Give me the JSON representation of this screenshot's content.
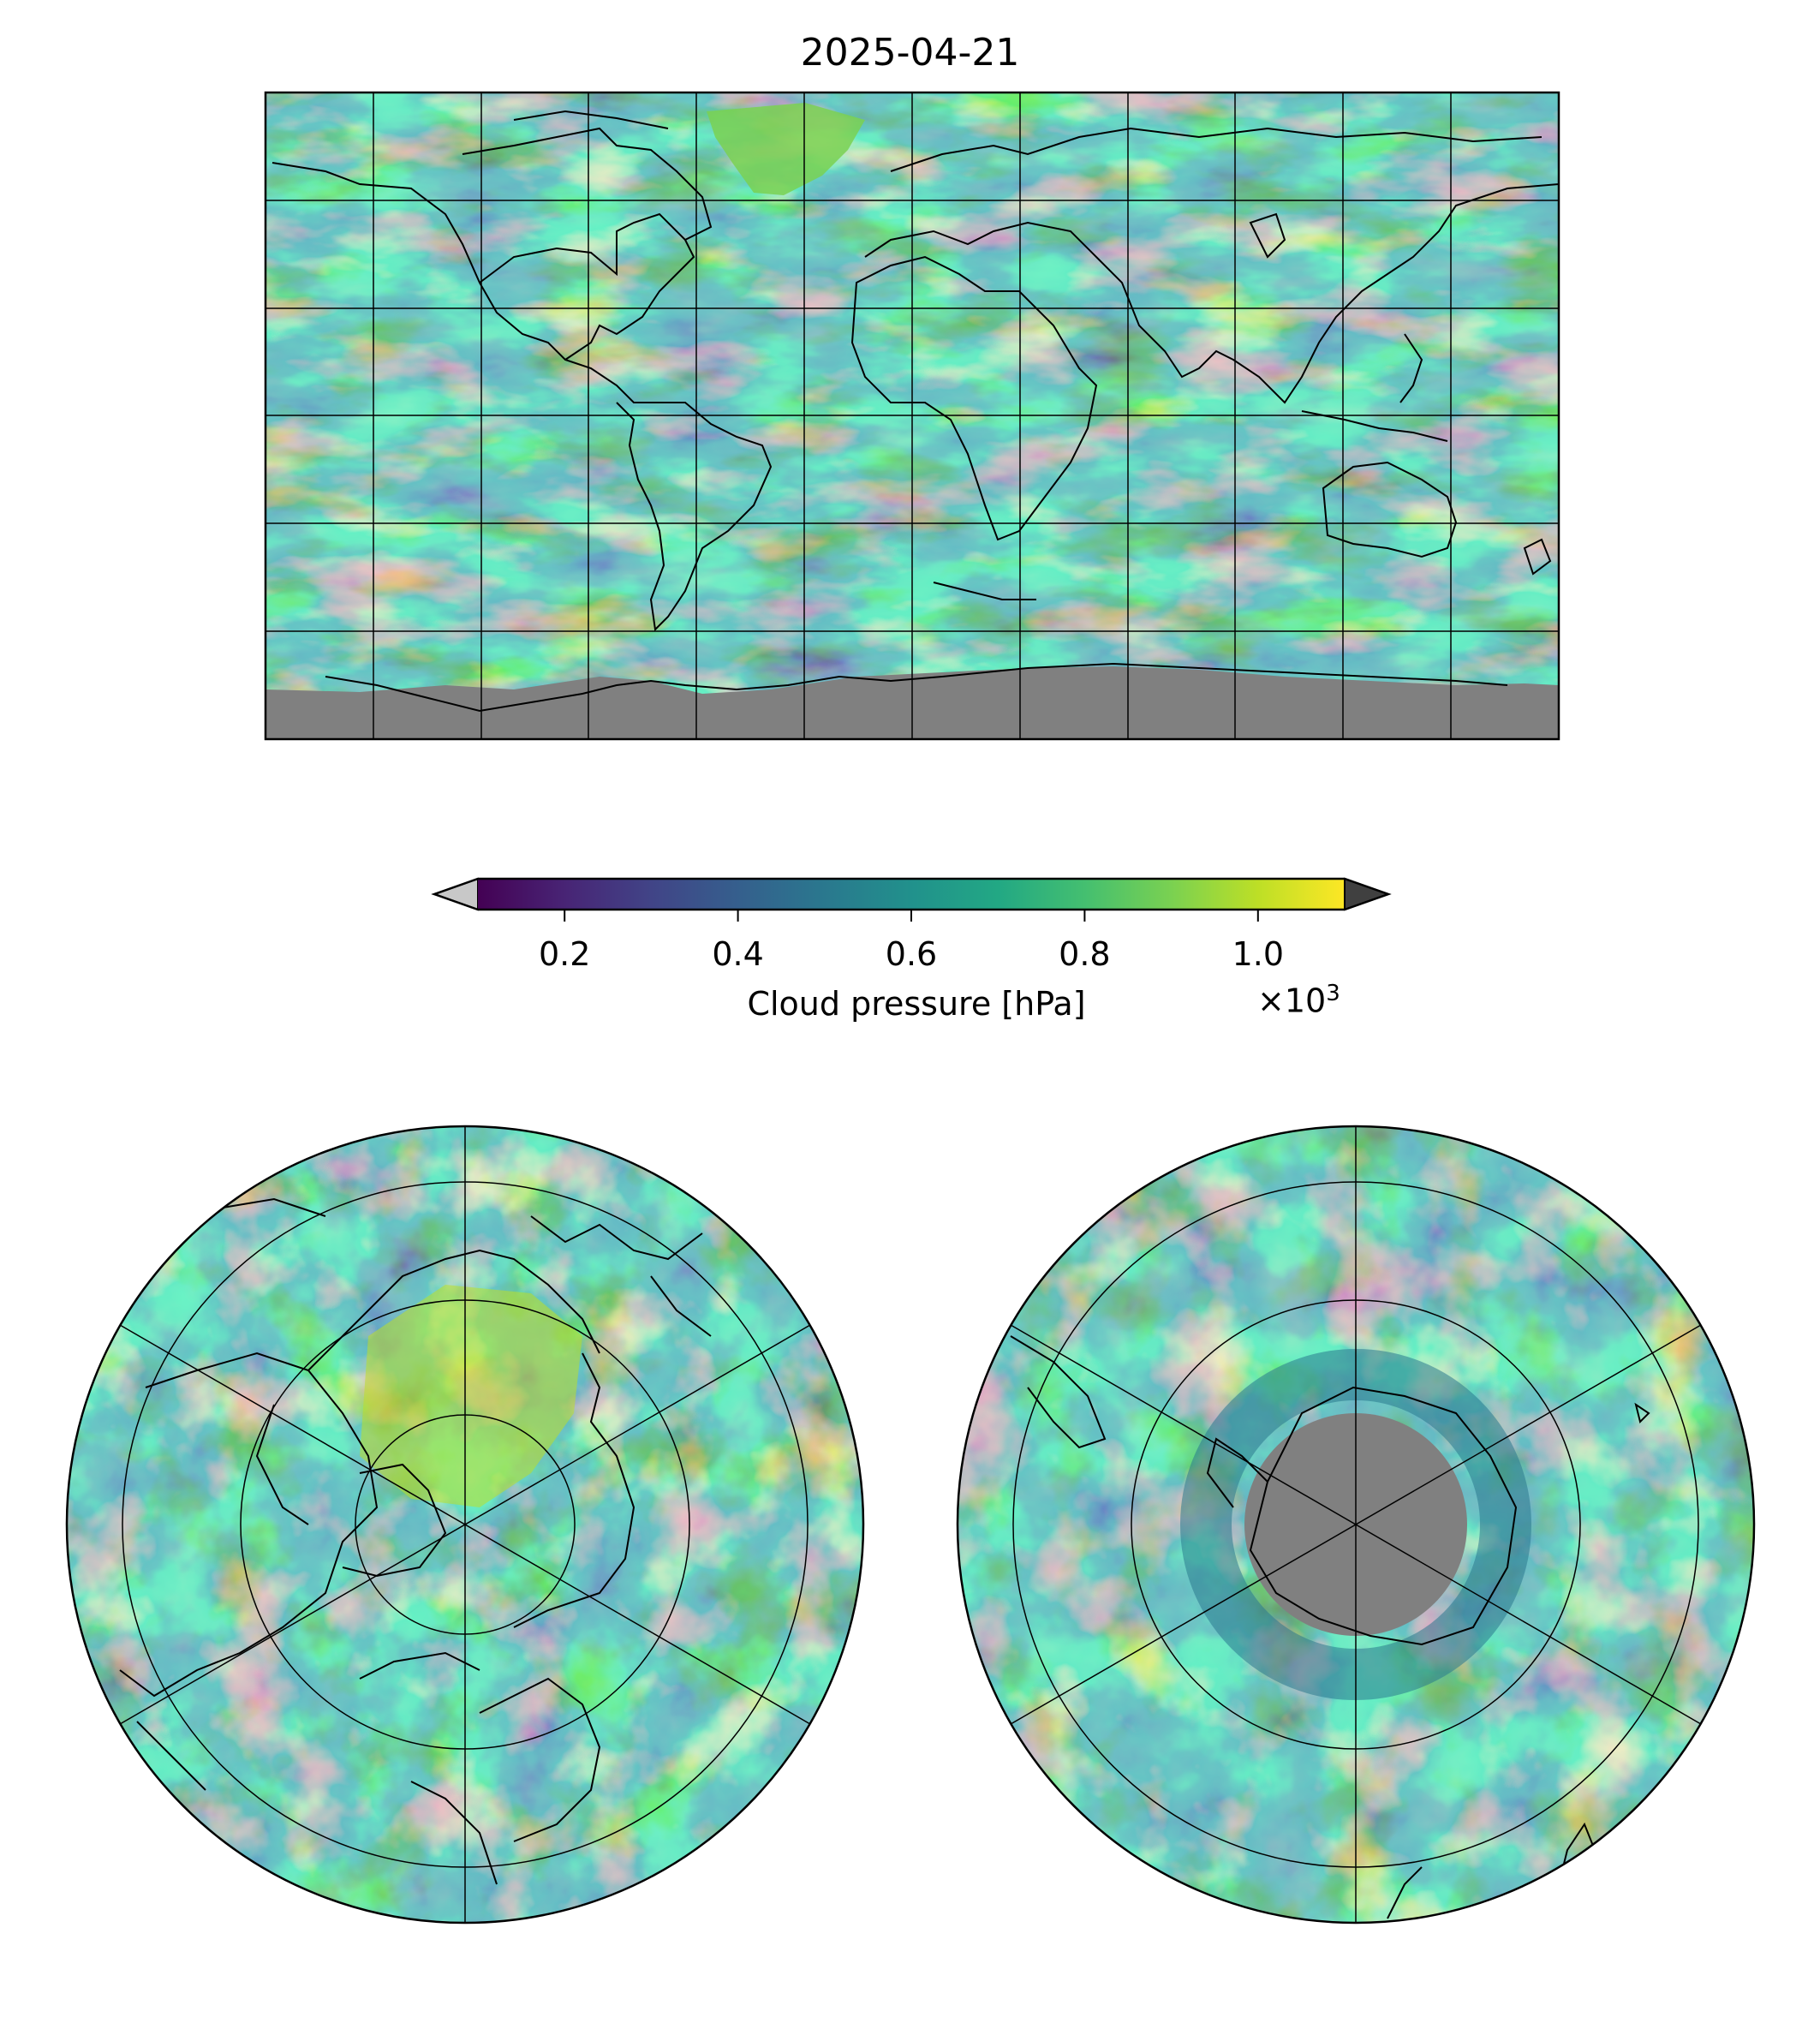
{
  "title": "2025-04-21",
  "colorbar": {
    "label": "Cloud pressure [hPa]",
    "multiplier": "×10",
    "multiplier_exp": "3",
    "ticks": [
      {
        "value": 0.2,
        "label": "0.2"
      },
      {
        "value": 0.4,
        "label": "0.4"
      },
      {
        "value": 0.6,
        "label": "0.6"
      },
      {
        "value": 0.8,
        "label": "0.8"
      },
      {
        "value": 1.0,
        "label": "1.0"
      }
    ],
    "range": [
      0.1,
      1.1
    ],
    "colormap": "viridis",
    "under_color": "#c8c8c8",
    "over_color": "#404040"
  },
  "colors": {
    "no_data": "#808080",
    "viridis_low": "#440154",
    "viridis_mid": "#21918c",
    "viridis_high": "#fde725"
  },
  "panels": [
    {
      "name": "global-map",
      "projection": "plate-carree"
    },
    {
      "name": "north-polar-map",
      "projection": "north-polar-stereographic"
    },
    {
      "name": "south-polar-map",
      "projection": "south-polar-stereographic"
    }
  ]
}
